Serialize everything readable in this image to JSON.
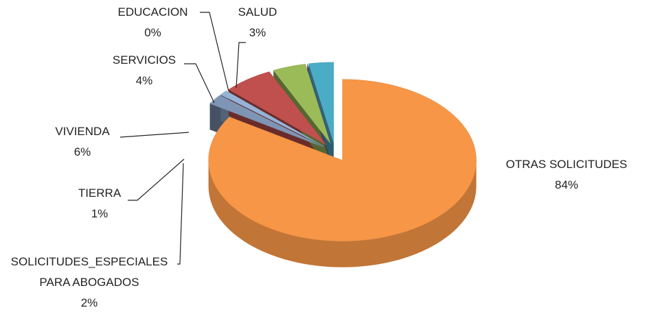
{
  "chart_data": {
    "type": "pie3d",
    "categories": [
      "OTRAS SOLICITUDES",
      "SOLICITUDES_ESPECIALES PARA ABOGADOS",
      "TIERRA",
      "VIVIENDA",
      "SERVICIOS",
      "EDUCACION",
      "SALUD"
    ],
    "values": [
      84,
      2,
      1,
      6,
      4,
      0,
      3
    ],
    "value_labels": [
      "84%",
      "2%",
      "1%",
      "6%",
      "4%",
      "0%",
      "3%"
    ],
    "colors": [
      "#f79646",
      "#7f95b5",
      "#95b3d7",
      "#c0504d",
      "#9bbb59",
      "#8064a2",
      "#4bacc6"
    ]
  }
}
